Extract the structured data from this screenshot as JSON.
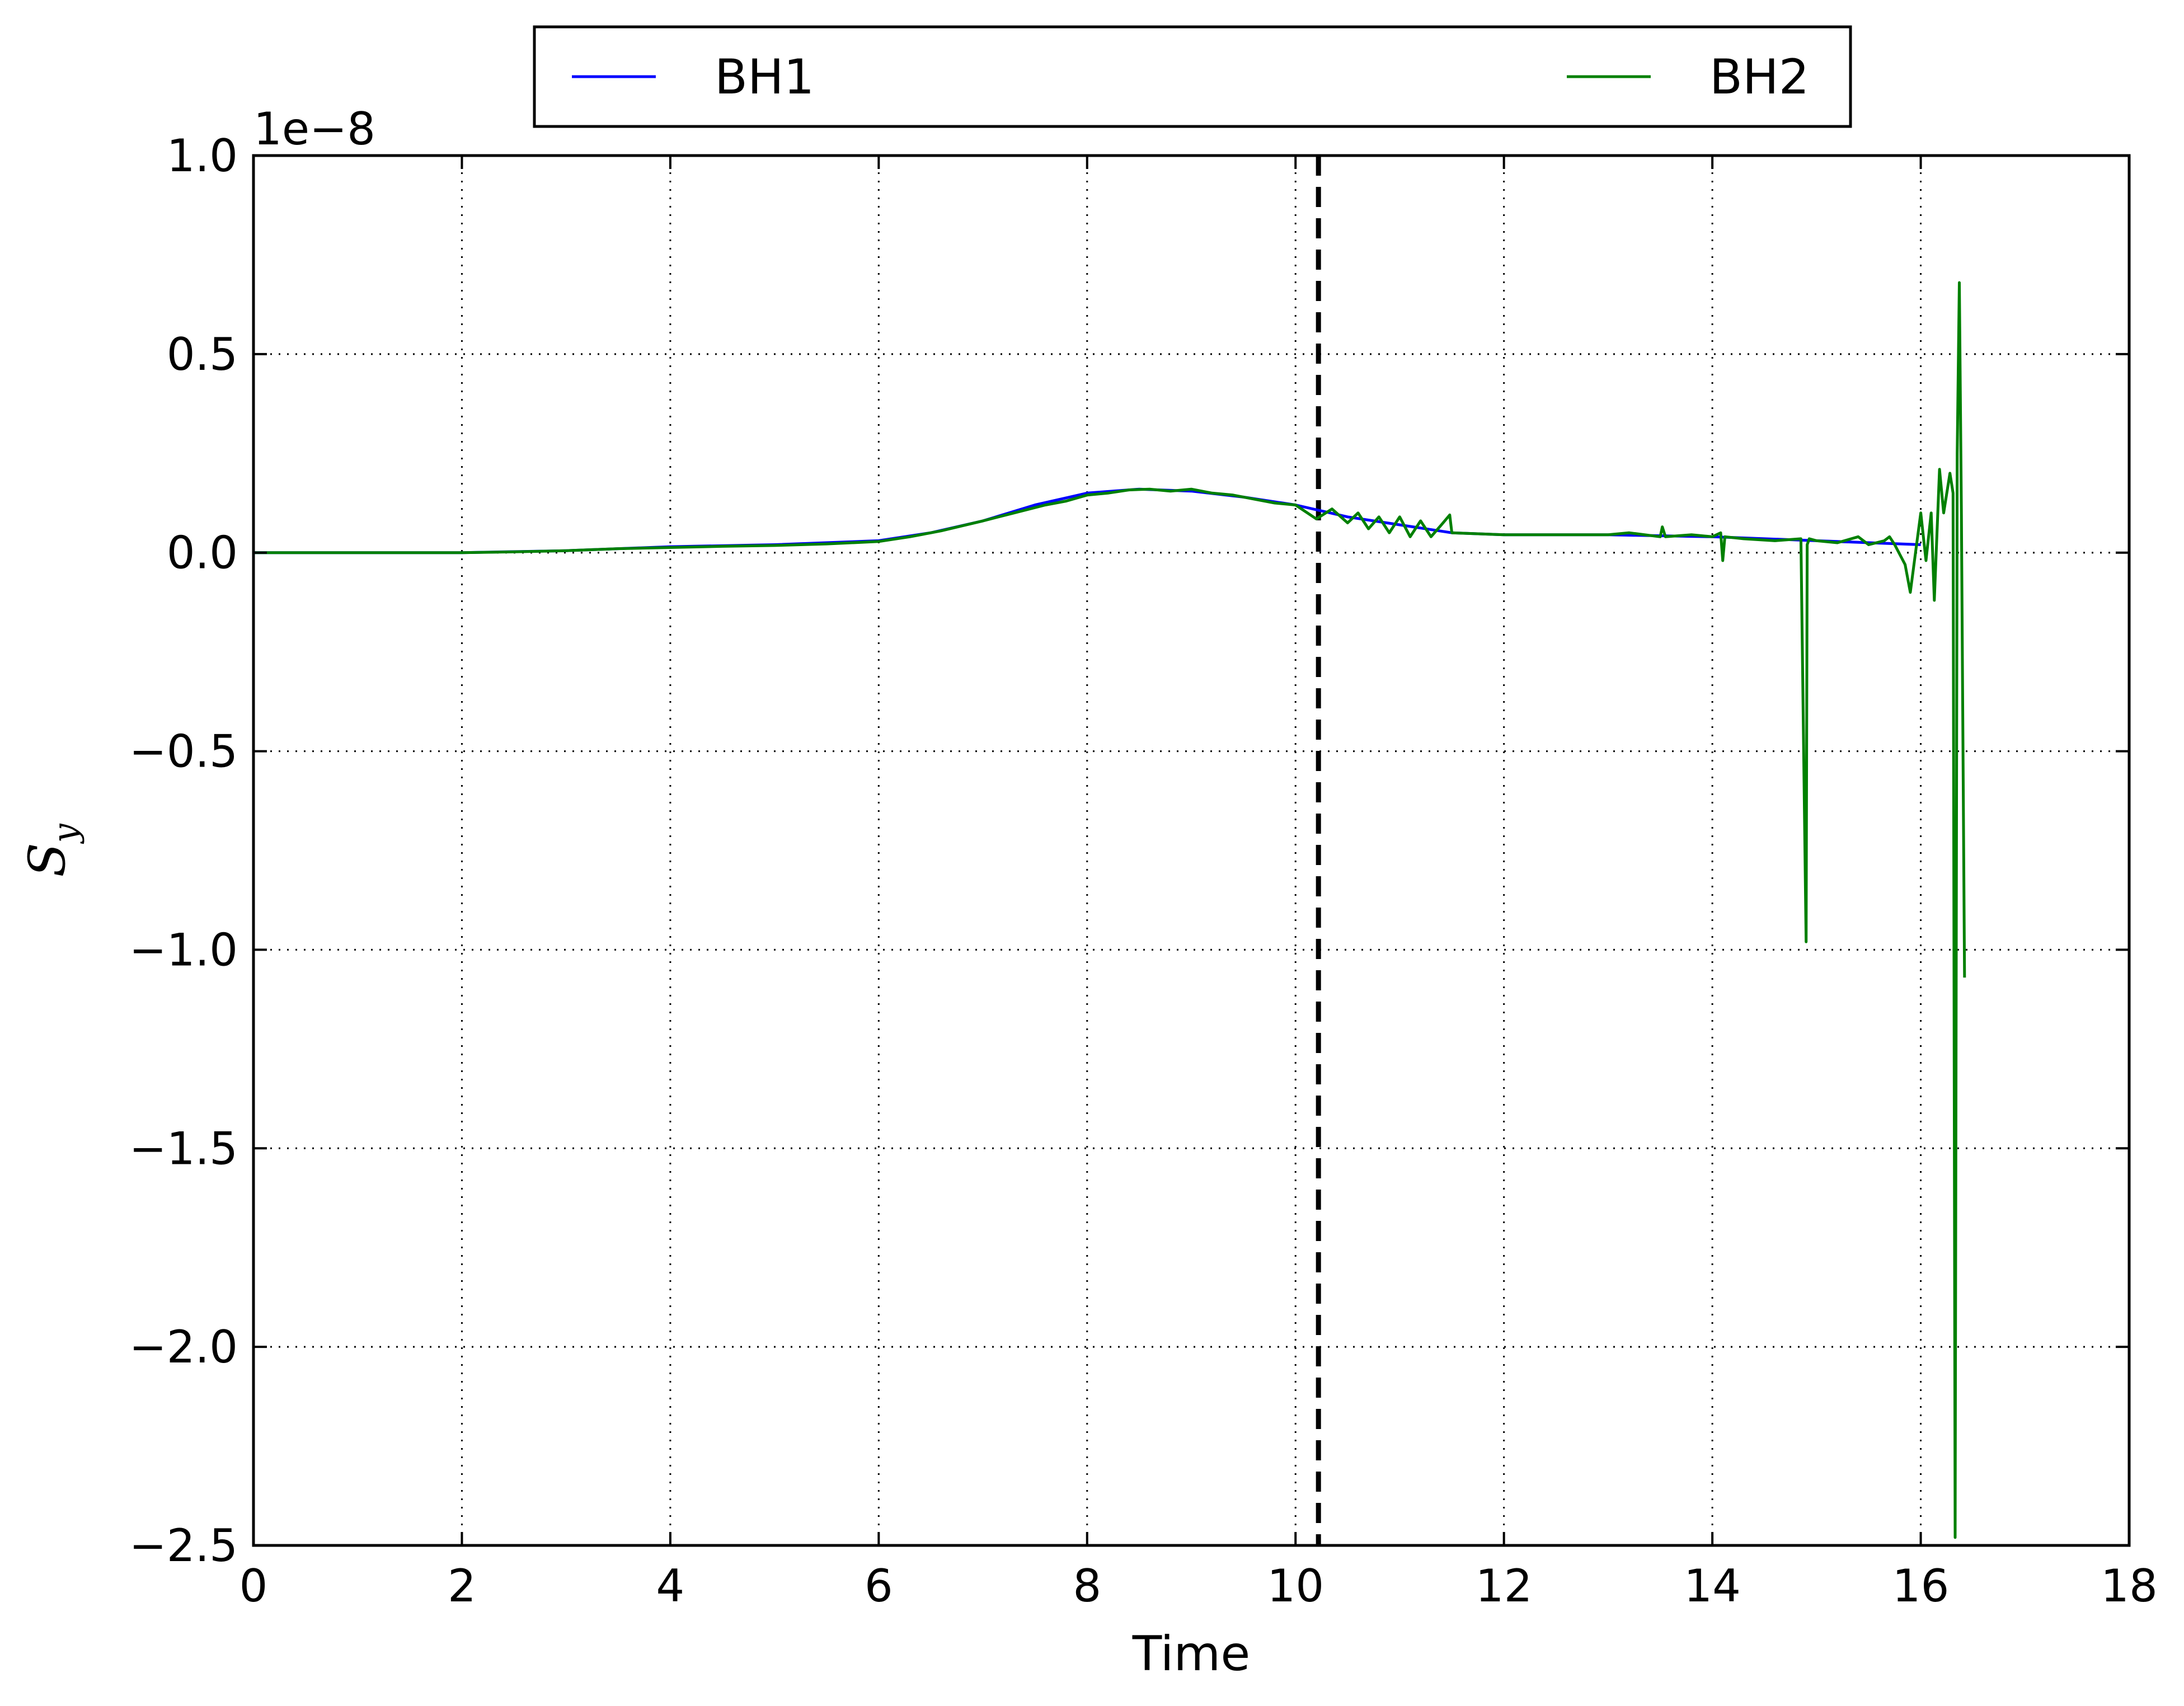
{
  "chart_data": {
    "type": "line",
    "title": "",
    "xlabel": "Time",
    "ylabel_main": "S",
    "ylabel_sub": "y",
    "y_offset_label": "1e−8",
    "xlim": [
      0,
      18
    ],
    "ylim": [
      -2.5,
      1.0
    ],
    "y_scale_factor": 1e-08,
    "grid": true,
    "legend_position": "top-center-outside",
    "x_ticks": [
      0,
      2,
      4,
      6,
      8,
      10,
      12,
      14,
      16,
      18
    ],
    "x_tick_labels": [
      "0",
      "2",
      "4",
      "6",
      "8",
      "10",
      "12",
      "14",
      "16",
      "18"
    ],
    "y_ticks": [
      1.0,
      0.5,
      0.0,
      -0.5,
      -1.0,
      -1.5,
      -2.0,
      -2.5
    ],
    "y_tick_labels": [
      "1.0",
      "0.5",
      "0.0",
      "−0.5",
      "−1.0",
      "−1.5",
      "−2.0",
      "−2.5"
    ],
    "vline": {
      "x": 10.22,
      "style": "dashed",
      "color": "#000000"
    },
    "series": [
      {
        "name": "BH1",
        "color": "#0000ff",
        "x": [
          0,
          2,
          3,
          4,
          5,
          6,
          6.5,
          7,
          7.5,
          8,
          8.5,
          9,
          9.5,
          10,
          10.5,
          11,
          11.5,
          12,
          13,
          14,
          15,
          16
        ],
        "y": [
          0,
          0,
          0.005,
          0.015,
          0.02,
          0.03,
          0.05,
          0.08,
          0.12,
          0.15,
          0.16,
          0.155,
          0.14,
          0.12,
          0.09,
          0.07,
          0.05,
          0.045,
          0.045,
          0.04,
          0.03,
          0.02
        ]
      },
      {
        "name": "BH2",
        "color": "#008000",
        "x": [
          0,
          1,
          2,
          2.5,
          3,
          3.5,
          4,
          4.5,
          5,
          5.5,
          6,
          6.3,
          6.6,
          7,
          7.3,
          7.6,
          7.8,
          8.0,
          8.2,
          8.4,
          8.6,
          8.8,
          9.0,
          9.2,
          9.4,
          9.6,
          9.8,
          10.0,
          10.2,
          10.35,
          10.5,
          10.6,
          10.7,
          10.8,
          10.9,
          11.0,
          11.1,
          11.2,
          11.3,
          11.4,
          11.48,
          11.5,
          12.0,
          12.5,
          13.0,
          13.2,
          13.5,
          13.52,
          13.55,
          13.8,
          14.0,
          14.08,
          14.1,
          14.12,
          14.3,
          14.6,
          14.85,
          14.9,
          14.91,
          14.93,
          15.0,
          15.2,
          15.4,
          15.5,
          15.65,
          15.7,
          15.75,
          15.85,
          15.9,
          15.95,
          16.0,
          16.05,
          16.1,
          16.13,
          16.18,
          16.22,
          16.28,
          16.31,
          16.33,
          16.35,
          16.37,
          16.39,
          16.42
        ],
        "y": [
          0,
          0,
          0,
          0.002,
          0.005,
          0.01,
          0.013,
          0.016,
          0.018,
          0.022,
          0.028,
          0.04,
          0.055,
          0.08,
          0.1,
          0.12,
          0.13,
          0.145,
          0.15,
          0.158,
          0.16,
          0.155,
          0.16,
          0.15,
          0.145,
          0.135,
          0.125,
          0.12,
          0.085,
          0.11,
          0.075,
          0.1,
          0.06,
          0.09,
          0.05,
          0.09,
          0.04,
          0.08,
          0.04,
          0.07,
          0.095,
          0.05,
          0.045,
          0.045,
          0.045,
          0.05,
          0.04,
          0.065,
          0.04,
          0.045,
          0.04,
          0.05,
          -0.02,
          0.04,
          0.035,
          0.03,
          0.035,
          -0.98,
          0.02,
          0.035,
          0.03,
          0.025,
          0.04,
          0.02,
          0.03,
          0.04,
          0.02,
          -0.03,
          -0.1,
          0.0,
          0.1,
          -0.02,
          0.1,
          -0.12,
          0.21,
          0.1,
          0.2,
          0.15,
          -2.48,
          0.25,
          0.68,
          0.1,
          -1.07
        ]
      }
    ]
  }
}
